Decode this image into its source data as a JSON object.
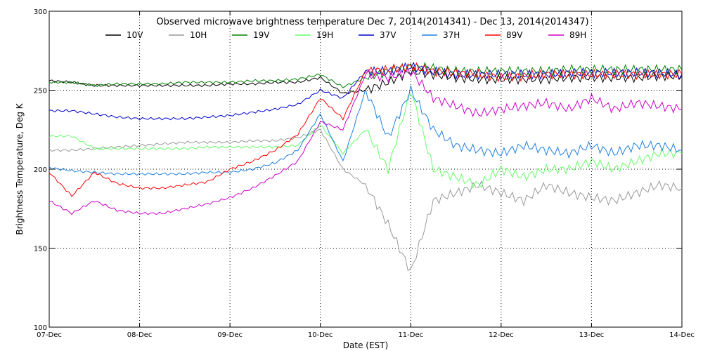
{
  "chart_data": {
    "type": "line",
    "title": "Observed microwave brightness temperature Dec  7, 2014(2014341) - Dec 13, 2014(2014347)",
    "xlabel": "Date (EST)",
    "ylabel": "Brightness Temperature, Deg K",
    "xlim": [
      0,
      7
    ],
    "ylim": [
      100,
      300
    ],
    "x_tick_labels": [
      "07-Dec",
      "08-Dec",
      "09-Dec",
      "10-Dec",
      "11-Dec",
      "12-Dec",
      "13-Dec",
      "14-Dec"
    ],
    "y_ticks": [
      100,
      150,
      200,
      250,
      300
    ],
    "grid": "dotted",
    "legend_position": "top",
    "x": [
      0,
      0.25,
      0.5,
      0.75,
      1,
      1.25,
      1.5,
      1.75,
      2,
      2.25,
      2.5,
      2.75,
      3,
      3.25,
      3.5,
      3.75,
      4,
      4.25,
      4.5,
      4.75,
      5,
      5.25,
      5.5,
      5.75,
      6,
      6.25,
      6.5,
      6.75,
      7
    ],
    "series": [
      {
        "name": "10V",
        "color": "#000000",
        "values": [
          256,
          255,
          253,
          253,
          253,
          253,
          253,
          253,
          254,
          254,
          255,
          255,
          258,
          248,
          250,
          255,
          262,
          260,
          258,
          257,
          257,
          257,
          257,
          258,
          258,
          258,
          258,
          259,
          259
        ]
      },
      {
        "name": "10H",
        "color": "#999999",
        "values": [
          212,
          212,
          213,
          214,
          215,
          216,
          217,
          217,
          217,
          218,
          218,
          220,
          225,
          200,
          190,
          165,
          135,
          180,
          185,
          190,
          185,
          180,
          190,
          185,
          182,
          180,
          185,
          190,
          188
        ]
      },
      {
        "name": "19V",
        "color": "#008000",
        "values": [
          255,
          255,
          253,
          254,
          254,
          254,
          255,
          255,
          255,
          256,
          256,
          257,
          260,
          252,
          258,
          262,
          265,
          264,
          262,
          262,
          262,
          262,
          262,
          263,
          263,
          263,
          263,
          263,
          263
        ]
      },
      {
        "name": "19H",
        "color": "#66ff66",
        "values": [
          221,
          221,
          213,
          213,
          213,
          213,
          213,
          214,
          214,
          214,
          214,
          215,
          228,
          210,
          225,
          200,
          250,
          200,
          195,
          190,
          200,
          195,
          200,
          200,
          205,
          200,
          205,
          210,
          210
        ]
      },
      {
        "name": "37V",
        "color": "#0000cc",
        "values": [
          237,
          237,
          235,
          233,
          232,
          232,
          232,
          233,
          234,
          236,
          238,
          241,
          250,
          245,
          262,
          262,
          265,
          262,
          260,
          260,
          260,
          260,
          260,
          261,
          261,
          261,
          261,
          261,
          260
        ]
      },
      {
        "name": "37H",
        "color": "#1e7fe0",
        "values": [
          201,
          199,
          198,
          197,
          197,
          197,
          197,
          198,
          198,
          200,
          204,
          212,
          235,
          205,
          250,
          220,
          250,
          225,
          215,
          212,
          210,
          215,
          212,
          210,
          215,
          210,
          215,
          215,
          212
        ]
      },
      {
        "name": "89V",
        "color": "#ff0000",
        "values": [
          198,
          183,
          198,
          191,
          188,
          188,
          190,
          192,
          200,
          205,
          212,
          222,
          245,
          232,
          262,
          263,
          265,
          262,
          261,
          260,
          258,
          259,
          260,
          260,
          260,
          260,
          260,
          260,
          260
        ]
      },
      {
        "name": "89H",
        "color": "#cc00cc",
        "values": [
          180,
          172,
          180,
          174,
          172,
          172,
          175,
          178,
          182,
          188,
          196,
          205,
          230,
          225,
          260,
          258,
          262,
          245,
          240,
          235,
          238,
          240,
          242,
          238,
          245,
          238,
          242,
          240,
          238
        ]
      }
    ]
  }
}
